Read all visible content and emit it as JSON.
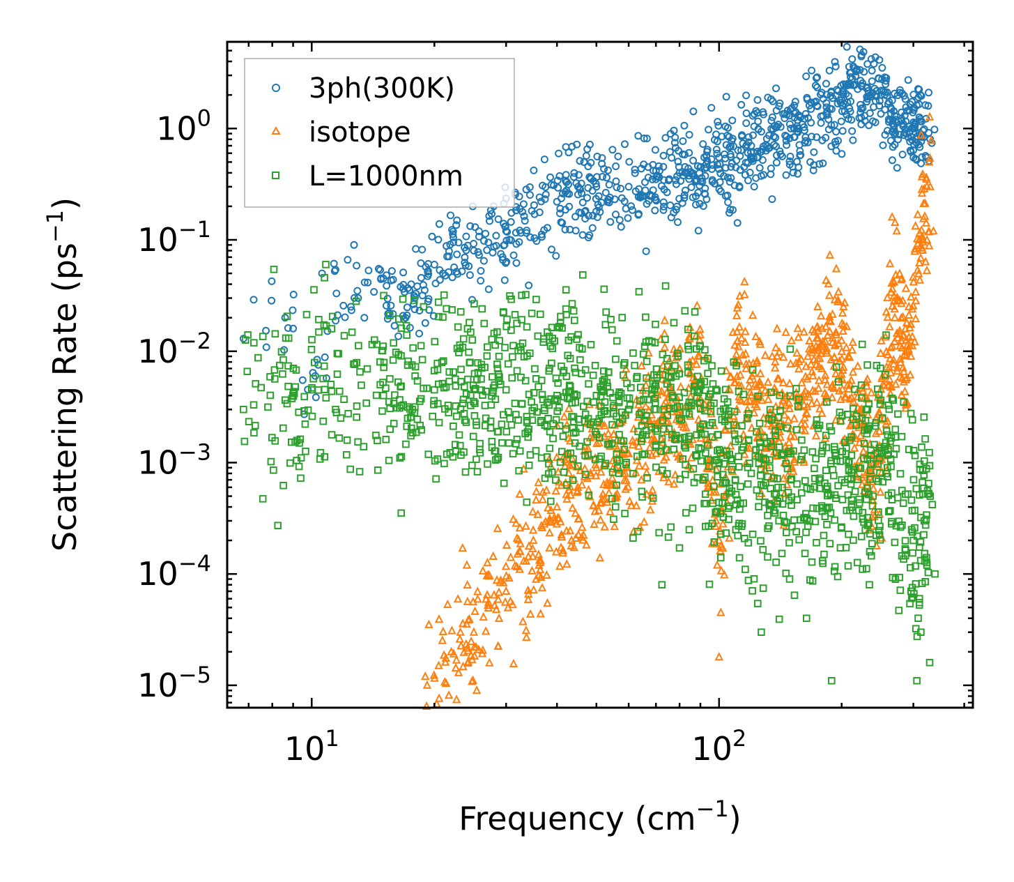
{
  "chart_data": {
    "type": "scatter",
    "xscale": "log",
    "yscale": "log",
    "xlim": [
      6.2,
      420
    ],
    "ylim": [
      6.3e-06,
      6.0
    ],
    "xlabel": {
      "main": "Frequency (cm",
      "exp": "−1",
      "close": ")"
    },
    "ylabel": {
      "main": "Scattering Rate (ps",
      "exp": "−1",
      "close": ")"
    },
    "xticks": [
      {
        "value": 10,
        "base": "10",
        "exp": "1"
      },
      {
        "value": 100,
        "base": "10",
        "exp": "2"
      }
    ],
    "yticks": [
      {
        "value": 1,
        "base": "10",
        "exp": "0"
      },
      {
        "value": 0.1,
        "base": "10",
        "exp": "−1"
      },
      {
        "value": 0.01,
        "base": "10",
        "exp": "−2"
      },
      {
        "value": 0.001,
        "base": "10",
        "exp": "−3"
      },
      {
        "value": 0.0001,
        "base": "10",
        "exp": "−4"
      },
      {
        "value": 1e-05,
        "base": "10",
        "exp": "−5"
      }
    ],
    "legend_position": "top-left",
    "series": [
      {
        "name": "3ph(300K)",
        "marker": "circle",
        "color": "#1f77b4",
        "anchors": [
          [
            6.8,
            0.013
          ],
          [
            7.2,
            0.029
          ],
          [
            9.0,
            0.016
          ],
          [
            9.5,
            0.0055
          ],
          [
            10.2,
            0.006
          ],
          [
            11.5,
            0.033
          ],
          [
            13,
            0.03
          ],
          [
            15,
            0.045
          ],
          [
            17,
            0.02
          ],
          [
            20,
            0.06
          ],
          [
            25,
            0.08
          ],
          [
            30,
            0.12
          ],
          [
            40,
            0.22
          ],
          [
            50,
            0.3
          ],
          [
            60,
            0.3
          ],
          [
            70,
            0.35
          ],
          [
            80,
            0.4
          ],
          [
            90,
            0.45
          ],
          [
            100,
            0.55
          ],
          [
            120,
            0.7
          ],
          [
            150,
            1.0
          ],
          [
            180,
            1.3
          ],
          [
            200,
            1.8
          ],
          [
            230,
            2.3
          ],
          [
            250,
            2.0
          ],
          [
            270,
            1.3
          ],
          [
            300,
            1.0
          ],
          [
            330,
            0.8
          ]
        ],
        "points": [
          [
            8.6,
            0.02
          ],
          [
            10.6,
            0.05
          ],
          [
            12.7,
            0.09
          ],
          [
            14.6,
            0.055
          ],
          [
            16.9,
            0.034
          ],
          [
            19.3,
            0.028
          ],
          [
            21.5,
            0.071
          ],
          [
            24.3,
            0.058
          ],
          [
            27.2,
            0.036
          ],
          [
            29.6,
            0.089
          ],
          [
            31.8,
            0.062
          ],
          [
            34.1,
            0.039
          ],
          [
            36.7,
            0.112
          ],
          [
            38.8,
            0.082
          ],
          [
            41.2,
            0.142
          ],
          [
            44.5,
            0.121
          ],
          [
            47.8,
            0.105
          ],
          [
            51.0,
            0.178
          ],
          [
            54.1,
            0.145
          ],
          [
            57.5,
            0.131
          ],
          [
            60.8,
            0.201
          ],
          [
            63.5,
            0.171
          ],
          [
            66.2,
            0.079
          ],
          [
            69.7,
            0.242
          ],
          [
            73.1,
            0.218
          ],
          [
            77.4,
            0.176
          ],
          [
            81.3,
            0.214
          ],
          [
            85.5,
            0.297
          ],
          [
            89.0,
            0.121
          ],
          [
            92.4,
            0.257
          ],
          [
            96.3,
            0.345
          ],
          [
            101,
            0.273
          ],
          [
            106,
            0.175
          ],
          [
            111,
            0.142
          ],
          [
            116,
            0.384
          ],
          [
            122,
            0.301
          ],
          [
            128,
            0.521
          ],
          [
            135,
            0.232
          ],
          [
            141,
            0.624
          ],
          [
            149,
            0.508
          ],
          [
            156,
            0.392
          ],
          [
            163,
            0.834
          ],
          [
            171,
            0.613
          ],
          [
            178,
            1.12
          ],
          [
            186,
            0.982
          ],
          [
            193,
            0.763
          ],
          [
            201,
            1.61
          ],
          [
            210,
            1.42
          ],
          [
            218,
            3.4
          ],
          [
            225,
            2.55
          ],
          [
            233,
            1.96
          ],
          [
            241,
            2.28
          ],
          [
            248,
            1.77
          ],
          [
            261,
            1.21
          ],
          [
            271,
            0.91
          ],
          [
            283,
            1.05
          ],
          [
            297,
            0.84
          ],
          [
            311,
            0.68
          ],
          [
            321,
            1.62
          ],
          [
            327,
            2.1
          ],
          [
            333,
            0.74
          ],
          [
            338,
            0.98
          ]
        ],
        "jitter": 0.2,
        "label": "3ph(300K)"
      },
      {
        "name": "isotope",
        "marker": "triangle",
        "color": "#ff7f0e",
        "anchors": [
          [
            19,
            1.2e-05
          ],
          [
            22,
            2e-05
          ],
          [
            25,
            3e-05
          ],
          [
            30,
            7e-05
          ],
          [
            35,
            0.0002
          ],
          [
            40,
            0.0004
          ],
          [
            45,
            0.0006
          ],
          [
            50,
            0.0009
          ],
          [
            60,
            0.0012
          ],
          [
            70,
            0.002
          ],
          [
            80,
            0.003
          ],
          [
            90,
            0.005
          ],
          [
            100,
            0.0002
          ],
          [
            110,
            0.008
          ],
          [
            120,
            0.004
          ],
          [
            150,
            0.002
          ],
          [
            170,
            0.006
          ],
          [
            190,
            0.012
          ],
          [
            210,
            0.005
          ],
          [
            240,
            0.001
          ],
          [
            270,
            0.02
          ],
          [
            290,
            0.01
          ],
          [
            310,
            0.1
          ],
          [
            330,
            0.3
          ]
        ],
        "points": [
          [
            19.2,
            1e-05
          ],
          [
            20.5,
            1.5e-05
          ],
          [
            23.1,
            2.6e-05
          ],
          [
            26.4,
            4.1e-05
          ],
          [
            28.7,
            5.9e-05
          ],
          [
            32.4,
            0.00011
          ],
          [
            36.8,
            0.00026
          ],
          [
            39.4,
            0.00032
          ],
          [
            43.2,
            0.00051
          ],
          [
            47.5,
            0.00072
          ],
          [
            52.3,
            0.00098
          ],
          [
            56.1,
            0.0011
          ],
          [
            63.5,
            0.0014
          ],
          [
            68.2,
            0.0018
          ],
          [
            74.3,
            0.0023
          ],
          [
            79.5,
            0.0027
          ],
          [
            85.1,
            0.0039
          ],
          [
            89.8,
            0.0052
          ],
          [
            94.6,
            0.0034
          ],
          [
            100,
            1.8e-05
          ],
          [
            101,
            4.5e-05
          ],
          [
            103,
            9.8e-05
          ],
          [
            106,
            0.00021
          ],
          [
            109,
            0.0052
          ],
          [
            112,
            0.0081
          ],
          [
            116,
            0.015
          ],
          [
            121,
            0.021
          ],
          [
            126,
            0.0042
          ],
          [
            133,
            0.0028
          ],
          [
            141,
            0.0019
          ],
          [
            148,
            0.0024
          ],
          [
            156,
            0.0036
          ],
          [
            163,
            0.0059
          ],
          [
            171,
            0.0084
          ],
          [
            179,
            0.011
          ],
          [
            187,
            0.015
          ],
          [
            194,
            0.055
          ],
          [
            201,
            0.022
          ],
          [
            209,
            0.0088
          ],
          [
            219,
            0.0039
          ],
          [
            229,
            0.0021
          ],
          [
            241,
            0.0012
          ],
          [
            251,
            0.00021
          ],
          [
            258,
            0.00085
          ],
          [
            266,
            0.16
          ],
          [
            273,
            0.12
          ],
          [
            281,
            0.045
          ],
          [
            289,
            0.018
          ],
          [
            296,
            0.009
          ],
          [
            304,
            0.034
          ],
          [
            311,
            0.115
          ],
          [
            318,
            0.212
          ],
          [
            323,
            0.35
          ],
          [
            328,
            0.5
          ],
          [
            332,
            0.78
          ],
          [
            336,
            0.12
          ]
        ],
        "jitter": 0.35,
        "label": "isotope"
      },
      {
        "name": "L=1000nm",
        "marker": "square",
        "color": "#2ca02c",
        "anchors": [
          [
            6.8,
            0.003
          ],
          [
            7.2,
            0.0033
          ],
          [
            9,
            0.004
          ],
          [
            10,
            0.0045
          ],
          [
            12,
            0.0037
          ],
          [
            15,
            0.004
          ],
          [
            20,
            0.0045
          ],
          [
            30,
            0.0045
          ],
          [
            40,
            0.004
          ],
          [
            50,
            0.004
          ],
          [
            60,
            0.003
          ],
          [
            70,
            0.003
          ],
          [
            80,
            0.0025
          ],
          [
            90,
            0.002
          ],
          [
            100,
            0.001
          ],
          [
            120,
            0.0008
          ],
          [
            150,
            0.0007
          ],
          [
            200,
            0.0007
          ],
          [
            250,
            0.0012
          ],
          [
            300,
            0.0002
          ],
          [
            330,
            0.0005
          ]
        ],
        "points": [
          [
            14.9,
            0.0029
          ],
          [
            17.2,
            0.0075
          ],
          [
            19.8,
            0.0026
          ],
          [
            23.5,
            0.0034
          ],
          [
            26.1,
            0.0076
          ],
          [
            28.7,
            0.0019
          ],
          [
            31.2,
            0.0012
          ],
          [
            33.8,
            0.0091
          ],
          [
            36.5,
            0.0023
          ],
          [
            38.9,
            0.00082
          ],
          [
            41.6,
            0.0067
          ],
          [
            44.3,
            0.0015
          ],
          [
            47.9,
            0.00051
          ],
          [
            51.3,
            0.0032
          ],
          [
            55.1,
            0.00031
          ],
          [
            58.2,
            0.0061
          ],
          [
            61.5,
            0.00021
          ],
          [
            65.2,
            0.0094
          ],
          [
            68.9,
            0.00048
          ],
          [
            72.4,
            8e-05
          ],
          [
            76.3,
            0.0058
          ],
          [
            80.2,
            0.00071
          ],
          [
            84.5,
            0.00025
          ],
          [
            88.2,
            0.0038
          ],
          [
            92.6,
            0.00052
          ],
          [
            97.1,
            0.00061
          ],
          [
            101,
            0.00014
          ],
          [
            105,
            0.0035
          ],
          [
            110,
            0.00025
          ],
          [
            116,
            0.00011
          ],
          [
            121,
            0.0068
          ],
          [
            127,
            3e-05
          ],
          [
            134,
            0.00041
          ],
          [
            141,
            0.0021
          ],
          [
            149,
            9e-05
          ],
          [
            157,
            0.0037
          ],
          [
            164,
            4e-05
          ],
          [
            172,
            0.00072
          ],
          [
            181,
            0.00015
          ],
          [
            189,
            1.1e-05
          ],
          [
            196,
            0.00062
          ],
          [
            205,
            0.0012
          ],
          [
            214,
            0.00033
          ],
          [
            224,
            0.0038
          ],
          [
            234,
            8e-05
          ],
          [
            246,
            0.00068
          ],
          [
            259,
            0.0009
          ],
          [
            271,
            0.0017
          ],
          [
            284,
            0.0035
          ],
          [
            297,
            0.00025
          ],
          [
            306,
            1.1e-05
          ],
          [
            313,
            3e-05
          ],
          [
            319,
            0.0003
          ],
          [
            324,
            0.00012
          ],
          [
            329,
            1.6e-05
          ],
          [
            334,
            0.00042
          ],
          [
            339,
            0.0001
          ]
        ],
        "jitter": 0.45,
        "label": "L=1000nm"
      }
    ]
  }
}
